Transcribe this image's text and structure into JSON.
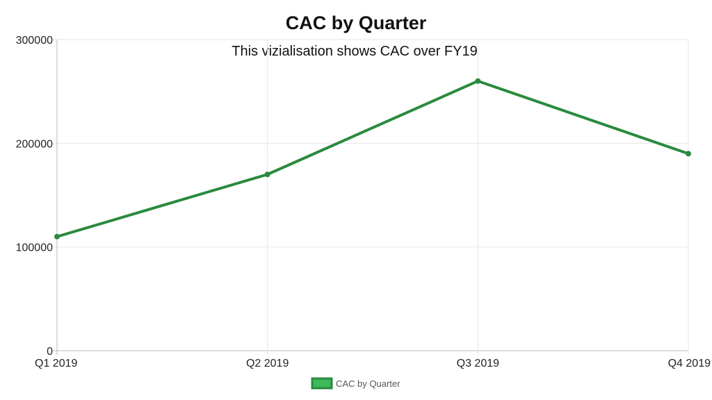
{
  "chart_data": {
    "type": "line",
    "title": "CAC by Quarter",
    "subtitle": "This vizialisation shows  CAC over FY19",
    "categories": [
      "Q1 2019",
      "Q2 2019",
      "Q3 2019",
      "Q4 2019"
    ],
    "series": [
      {
        "name": "CAC by Quarter",
        "values": [
          110000,
          170000,
          260000,
          190000
        ],
        "color": "#2a8a3e",
        "fill": "#3cb95a"
      }
    ],
    "ylim": [
      0,
      300000
    ],
    "yticks": [
      0,
      100000,
      200000,
      300000
    ],
    "grid": true,
    "legend": "bottom-center",
    "xlabel": "",
    "ylabel": ""
  }
}
